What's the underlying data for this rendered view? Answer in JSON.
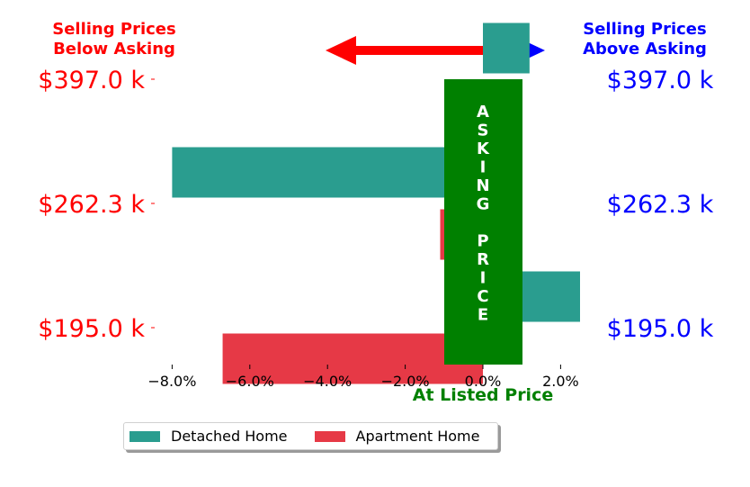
{
  "header": {
    "left_title_line1": "Selling Prices",
    "left_title_line2": "Below Asking",
    "right_title_line1": "Selling Prices",
    "right_title_line2": "Above Asking"
  },
  "colors": {
    "below": "#ff0000",
    "above": "#0000ff",
    "asking": "#008000",
    "detached": "#2a9d8f",
    "apartment": "#e63946"
  },
  "asking_band": {
    "text": "ASKING PRICE",
    "x_range": [
      -1.0,
      1.0
    ],
    "xlabel": "At Listed Price"
  },
  "chart_data": {
    "type": "bar",
    "orientation": "horizontal",
    "categories": [
      "$195.0 k",
      "$262.3 k",
      "$397.0 k"
    ],
    "right_labels": [
      "$195.0 k",
      "$262.3 k",
      "$397.0 k"
    ],
    "series": [
      {
        "name": "Detached Home",
        "values": [
          2.5,
          -8.0,
          1.2
        ]
      },
      {
        "name": "Apartment Home",
        "values": [
          -6.7,
          -1.1,
          0.0
        ]
      }
    ],
    "xticks": [
      "−8.0%",
      "−6.0%",
      "−4.0%",
      "−2.0%",
      "0.0%",
      "2.0%"
    ],
    "xtick_values": [
      -8,
      -6,
      -4,
      -2,
      0,
      2
    ],
    "xlim": [
      -9.0,
      2.5
    ],
    "legend_position": "bottom-center"
  },
  "legend": {
    "items": [
      {
        "label": "Detached Home"
      },
      {
        "label": "Apartment Home"
      }
    ]
  }
}
